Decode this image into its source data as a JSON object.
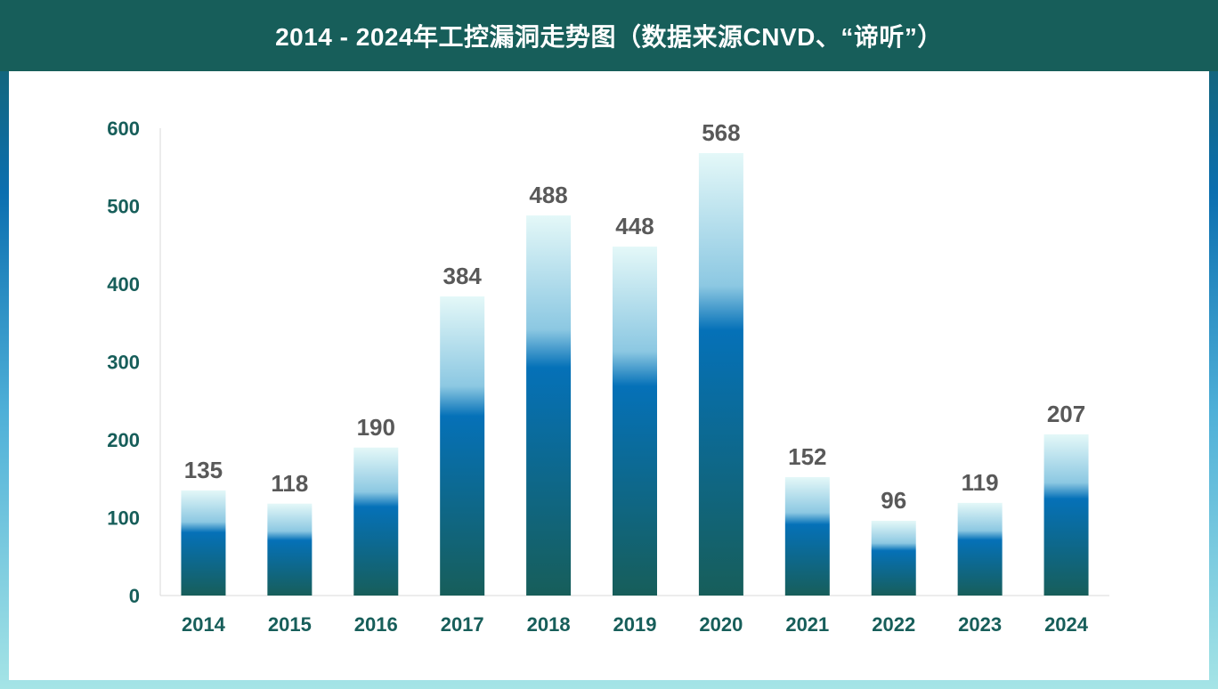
{
  "title": "2014 - 2024年工控漏洞走势图（数据来源CNVD、“谛听”）",
  "chart_data": {
    "type": "bar",
    "title": "2014 - 2024年工控漏洞走势图（数据来源CNVD、“谛听”）",
    "categories": [
      "2014",
      "2015",
      "2016",
      "2017",
      "2018",
      "2019",
      "2020",
      "2021",
      "2022",
      "2023",
      "2024"
    ],
    "values": [
      135,
      118,
      190,
      384,
      488,
      448,
      568,
      152,
      96,
      119,
      207
    ],
    "ylim": [
      0,
      600
    ],
    "yticks": [
      0,
      100,
      200,
      300,
      400,
      500,
      600
    ],
    "xlabel": "",
    "ylabel": "",
    "grid": false,
    "legend": "none",
    "colors": {
      "bar_top": "#e4f8f8",
      "bar_mid": "#0571b8",
      "bar_bottom": "#175e5a"
    }
  }
}
